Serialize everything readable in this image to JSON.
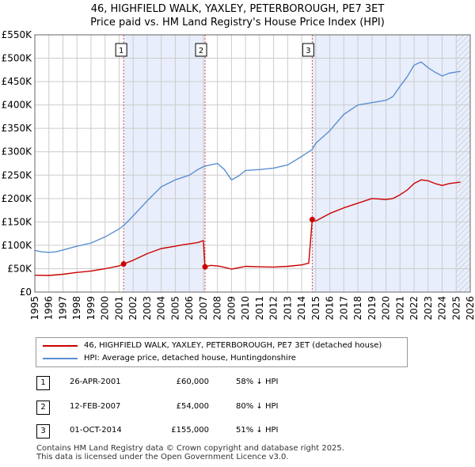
{
  "header": {
    "title_line1": "46, HIGHFIELD WALK, YAXLEY, PETERBOROUGH, PE7 3ET",
    "title_line2": "Price paid vs. HM Land Registry's House Price Index (HPI)"
  },
  "colors": {
    "property": "#cc0000",
    "hpi": "#5b8fd0",
    "shade": "#e8eefb",
    "grid": "#cccccc"
  },
  "legend": {
    "property_label": "46, HIGHFIELD WALK, YAXLEY, PETERBOROUGH, PE7 3ET (detached house)",
    "hpi_label": "HPI: Average price, detached house, Huntingdonshire"
  },
  "sales": [
    {
      "num": "1",
      "date": "26-APR-2001",
      "price": "£60,000",
      "hpi_diff": "58% ↓ HPI"
    },
    {
      "num": "2",
      "date": "12-FEB-2007",
      "price": "£54,000",
      "hpi_diff": "80% ↓ HPI"
    },
    {
      "num": "3",
      "date": "01-OCT-2014",
      "price": "£155,000",
      "hpi_diff": "51% ↓ HPI"
    }
  ],
  "footer": {
    "line1": "Contains HM Land Registry data © Crown copyright and database right 2025.",
    "line2": "This data is licensed under the Open Government Licence v3.0."
  },
  "chart_data": {
    "type": "line",
    "title": "46, HIGHFIELD WALK, YAXLEY, PETERBOROUGH, PE7 3ET",
    "subtitle": "Price paid vs. HM Land Registry's House Price Index (HPI)",
    "xlabel": "",
    "ylabel": "",
    "xlim": [
      1995,
      2026
    ],
    "ylim": [
      0,
      550000
    ],
    "x_ticks": [
      1995,
      1996,
      1997,
      1998,
      1999,
      2000,
      2001,
      2002,
      2003,
      2004,
      2005,
      2006,
      2007,
      2008,
      2009,
      2010,
      2011,
      2012,
      2013,
      2014,
      2015,
      2016,
      2017,
      2018,
      2019,
      2020,
      2021,
      2022,
      2023,
      2024,
      2025,
      2026
    ],
    "y_ticks": [
      {
        "value": 0,
        "label": "£0"
      },
      {
        "value": 50000,
        "label": "£50K"
      },
      {
        "value": 100000,
        "label": "£100K"
      },
      {
        "value": 150000,
        "label": "£150K"
      },
      {
        "value": 200000,
        "label": "£200K"
      },
      {
        "value": 250000,
        "label": "£250K"
      },
      {
        "value": 300000,
        "label": "£300K"
      },
      {
        "value": 350000,
        "label": "£350K"
      },
      {
        "value": 400000,
        "label": "£400K"
      },
      {
        "value": 450000,
        "label": "£450K"
      },
      {
        "value": 500000,
        "label": "£500K"
      },
      {
        "value": 550000,
        "label": "£550K"
      }
    ],
    "grid": true,
    "legend_position": "below",
    "sale_markers": [
      {
        "label": "1",
        "x": 2001.32,
        "y": 60000
      },
      {
        "label": "2",
        "x": 2007.12,
        "y": 54000
      },
      {
        "label": "3",
        "x": 2014.75,
        "y": 155000
      }
    ],
    "shaded_ranges": [
      [
        2001.32,
        2007.12
      ],
      [
        2014.75,
        2026
      ]
    ],
    "hatch_from": 2025.0,
    "series": [
      {
        "name": "46, HIGHFIELD WALK, YAXLEY, PETERBOROUGH, PE7 3ET (detached house)",
        "color": "#cc0000",
        "points": [
          [
            1995.0,
            36000
          ],
          [
            1996.0,
            35500
          ],
          [
            1997.0,
            38000
          ],
          [
            1998.0,
            42000
          ],
          [
            1999.0,
            45000
          ],
          [
            2000.0,
            50000
          ],
          [
            2001.0,
            56000
          ],
          [
            2001.32,
            60000
          ],
          [
            2002.0,
            68000
          ],
          [
            2003.0,
            82000
          ],
          [
            2004.0,
            93000
          ],
          [
            2005.0,
            98000
          ],
          [
            2005.5,
            101000
          ],
          [
            2006.0,
            103000
          ],
          [
            2006.6,
            106000
          ],
          [
            2007.0,
            110000
          ],
          [
            2007.12,
            54000
          ],
          [
            2007.5,
            57000
          ],
          [
            2008.0,
            56000
          ],
          [
            2008.5,
            53000
          ],
          [
            2009.0,
            49000
          ],
          [
            2009.5,
            52000
          ],
          [
            2010.0,
            55000
          ],
          [
            2011.0,
            54000
          ],
          [
            2012.0,
            53500
          ],
          [
            2013.0,
            55000
          ],
          [
            2014.0,
            58000
          ],
          [
            2014.5,
            62000
          ],
          [
            2014.75,
            155000
          ],
          [
            2015.0,
            152000
          ],
          [
            2016.0,
            168000
          ],
          [
            2017.0,
            180000
          ],
          [
            2018.0,
            190000
          ],
          [
            2019.0,
            200000
          ],
          [
            2020.0,
            198000
          ],
          [
            2020.5,
            200000
          ],
          [
            2021.0,
            208000
          ],
          [
            2021.5,
            218000
          ],
          [
            2022.0,
            232000
          ],
          [
            2022.5,
            240000
          ],
          [
            2023.0,
            238000
          ],
          [
            2023.5,
            232000
          ],
          [
            2024.0,
            228000
          ],
          [
            2024.5,
            232000
          ],
          [
            2025.3,
            235000
          ]
        ]
      },
      {
        "name": "HPI: Average price, detached house, Huntingdonshire",
        "color": "#5b8fd0",
        "points": [
          [
            1995.0,
            89000
          ],
          [
            1995.5,
            86000
          ],
          [
            1996.0,
            85000
          ],
          [
            1996.5,
            86000
          ],
          [
            1997.0,
            90000
          ],
          [
            1998.0,
            98000
          ],
          [
            1999.0,
            105000
          ],
          [
            2000.0,
            118000
          ],
          [
            2001.0,
            135000
          ],
          [
            2001.32,
            142000
          ],
          [
            2002.0,
            163000
          ],
          [
            2003.0,
            195000
          ],
          [
            2004.0,
            225000
          ],
          [
            2005.0,
            240000
          ],
          [
            2006.0,
            250000
          ],
          [
            2006.6,
            262000
          ],
          [
            2007.0,
            268000
          ],
          [
            2007.5,
            272000
          ],
          [
            2008.0,
            275000
          ],
          [
            2008.5,
            262000
          ],
          [
            2009.0,
            240000
          ],
          [
            2009.5,
            248000
          ],
          [
            2010.0,
            260000
          ],
          [
            2011.0,
            262000
          ],
          [
            2012.0,
            265000
          ],
          [
            2013.0,
            272000
          ],
          [
            2014.0,
            290000
          ],
          [
            2014.75,
            305000
          ],
          [
            2015.0,
            318000
          ],
          [
            2016.0,
            345000
          ],
          [
            2017.0,
            380000
          ],
          [
            2018.0,
            400000
          ],
          [
            2019.0,
            405000
          ],
          [
            2020.0,
            410000
          ],
          [
            2020.5,
            418000
          ],
          [
            2021.0,
            440000
          ],
          [
            2021.5,
            460000
          ],
          [
            2022.0,
            485000
          ],
          [
            2022.5,
            492000
          ],
          [
            2023.0,
            480000
          ],
          [
            2023.5,
            470000
          ],
          [
            2024.0,
            462000
          ],
          [
            2024.5,
            468000
          ],
          [
            2025.3,
            472000
          ]
        ]
      }
    ]
  }
}
